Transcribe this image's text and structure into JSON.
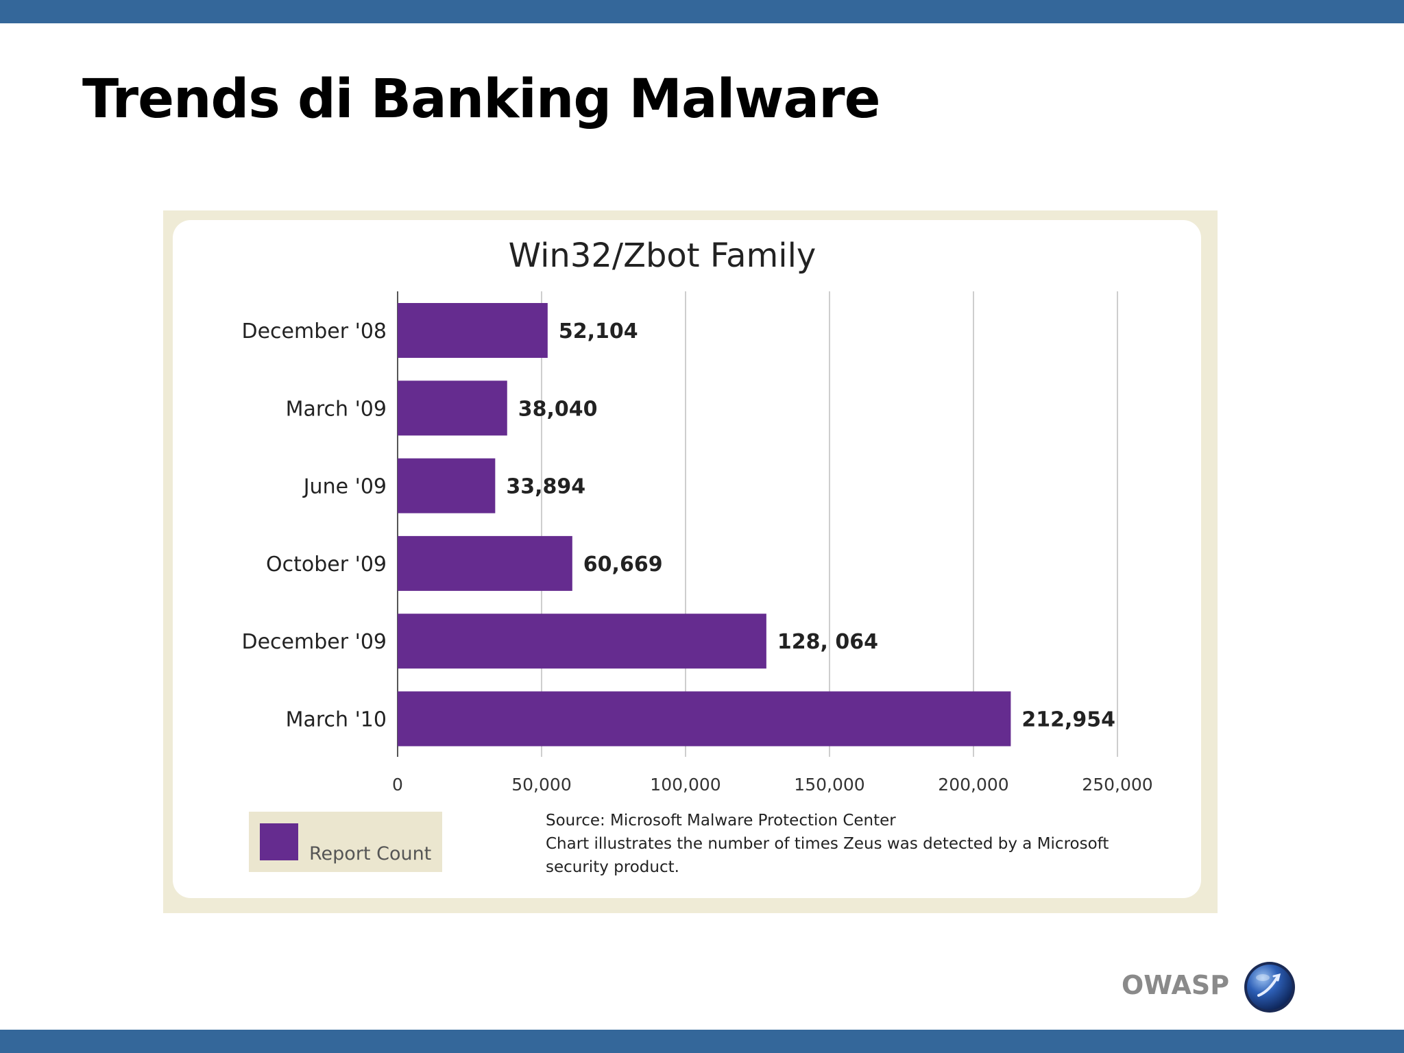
{
  "slide": {
    "title": "Trends di Banking Malware",
    "footer_brand": "OWASP",
    "logo_icon": "owasp-globe-icon"
  },
  "colors": {
    "accent_bar": "#34679a",
    "bar_fill": "#652c8f",
    "figure_frame": "#efebd6"
  },
  "chart_data": {
    "type": "bar",
    "orientation": "horizontal",
    "title": "Win32/Zbot Family",
    "categories": [
      "December '08",
      "March '09",
      "June '09",
      "October '09",
      "December '09",
      "March '10"
    ],
    "values": [
      52104,
      38040,
      33894,
      60669,
      128064,
      212954
    ],
    "value_labels": [
      "52,104",
      "38,040",
      "33,894",
      "60,669",
      "128, 064",
      "212,954"
    ],
    "xlim": [
      0,
      250000
    ],
    "x_ticks": [
      0,
      50000,
      100000,
      150000,
      200000,
      250000
    ],
    "x_tick_labels": [
      "0",
      "50,000",
      "100,000",
      "150,000",
      "200,000",
      "250,000"
    ],
    "grid": true,
    "legend": {
      "placement": "bottom-left",
      "entries": [
        {
          "name": "Report Count"
        }
      ]
    },
    "annotation": [
      "Source: Microsoft Malware Protection Center",
      "Chart illustrates the number of times Zeus was detected by a Microsoft",
      "security product."
    ]
  }
}
